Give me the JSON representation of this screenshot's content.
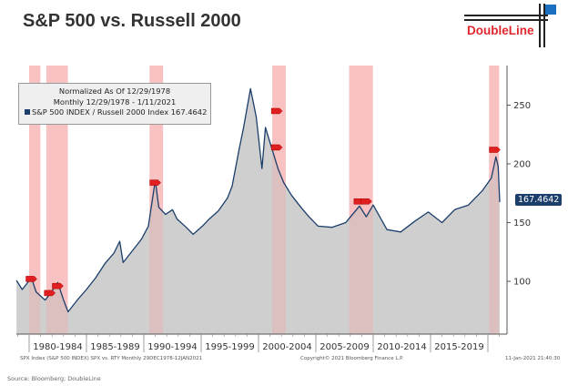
{
  "header": {
    "title": "S&P 500 vs. Russell 2000",
    "logo_text": "DoubleLine"
  },
  "legend": {
    "line1": "Normalized As Of 12/29/1978",
    "line2": "Monthly 12/29/1978 - 1/11/2021",
    "line3": "S&P 500 INDEX / Russell 2000 Index 167.4642"
  },
  "last_value_label": "167.4642",
  "footer": {
    "left": "SPX Index (S&P 500 INDEX) SPX vs. RTY  Monthly 29DEC1978-12JAN2021",
    "center": "Copyright© 2021 Bloomberg Finance L.P.",
    "right": "11-Jan-2021 21:40:30"
  },
  "source": "Source: Bloomberg; DoubleLine",
  "colors": {
    "line": "#1b3e6b",
    "area": "#cfcfcf",
    "recession": "#f4a0a0",
    "marker": "#e02020"
  },
  "chart_data": {
    "type": "area",
    "title": "S&P 500 vs. Russell 2000",
    "xlabel": "",
    "ylabel": "",
    "ylim": [
      50,
      280
    ],
    "xlim": [
      1978.9,
      2021.1
    ],
    "yticks": [
      100,
      150,
      200,
      250
    ],
    "xtick_labels": [
      "1980-1984",
      "1985-1989",
      "1990-1994",
      "1995-1999",
      "2000-2004",
      "2005-2009",
      "2010-2014",
      "2015-2019"
    ],
    "xtick_starts": [
      1980,
      1985,
      1990,
      1995,
      2000,
      2005,
      2010,
      2015,
      2020
    ],
    "series": [
      {
        "name": "S&P 500 INDEX / Russell 2000 Index",
        "x": [
          1978.9,
          1979.4,
          1980.2,
          1980.6,
          1981.4,
          1981.8,
          1982.5,
          1983.0,
          1983.4,
          1984.2,
          1985.0,
          1985.8,
          1986.6,
          1987.4,
          1987.9,
          1988.2,
          1989.0,
          1989.8,
          1990.4,
          1991.0,
          1991.3,
          1991.9,
          1992.5,
          1992.9,
          1993.7,
          1994.3,
          1995.1,
          1995.7,
          1996.5,
          1997.3,
          1997.7,
          1998.3,
          1998.7,
          1999.3,
          1999.8,
          2000.3,
          2000.6,
          2001.1,
          2001.7,
          2002.2,
          2002.9,
          2003.7,
          2004.4,
          2005.2,
          2006.4,
          2007.6,
          2008.8,
          2009.4,
          2010.0,
          2011.2,
          2012.4,
          2013.6,
          2014.8,
          2016.0,
          2017.1,
          2018.3,
          2019.5,
          2020.3,
          2020.7,
          2020.9,
          2021.03
        ],
        "values": [
          100.8,
          93,
          103,
          91,
          84,
          89,
          99,
          84,
          74,
          84,
          93,
          103,
          115,
          124,
          134,
          116,
          126,
          136,
          147,
          186,
          163,
          157,
          161,
          153,
          146,
          140,
          147,
          153,
          160,
          171,
          181,
          212,
          231,
          264,
          240,
          196,
          231,
          215,
          196,
          184,
          173,
          163,
          155,
          147,
          146,
          150,
          164,
          155,
          165,
          144,
          142,
          151,
          159,
          150,
          161,
          165,
          177,
          188,
          206,
          198,
          167.46
        ]
      }
    ],
    "last_value": 167.4642,
    "recessions": [
      [
        1980.0,
        1980.5
      ],
      [
        1981.5,
        1982.9
      ],
      [
        1990.5,
        1991.2
      ],
      [
        2001.2,
        2001.9
      ],
      [
        2007.9,
        2009.5
      ],
      [
        2020.1,
        2020.5
      ]
    ],
    "markers": [
      [
        1980.2,
        102
      ],
      [
        1981.8,
        90
      ],
      [
        1982.5,
        96
      ],
      [
        1991.0,
        184
      ],
      [
        2001.6,
        245
      ],
      [
        2001.6,
        214
      ],
      [
        2008.8,
        168
      ],
      [
        2009.4,
        168
      ],
      [
        2020.6,
        212
      ]
    ],
    "grid": false,
    "legend_position": "top-left"
  }
}
